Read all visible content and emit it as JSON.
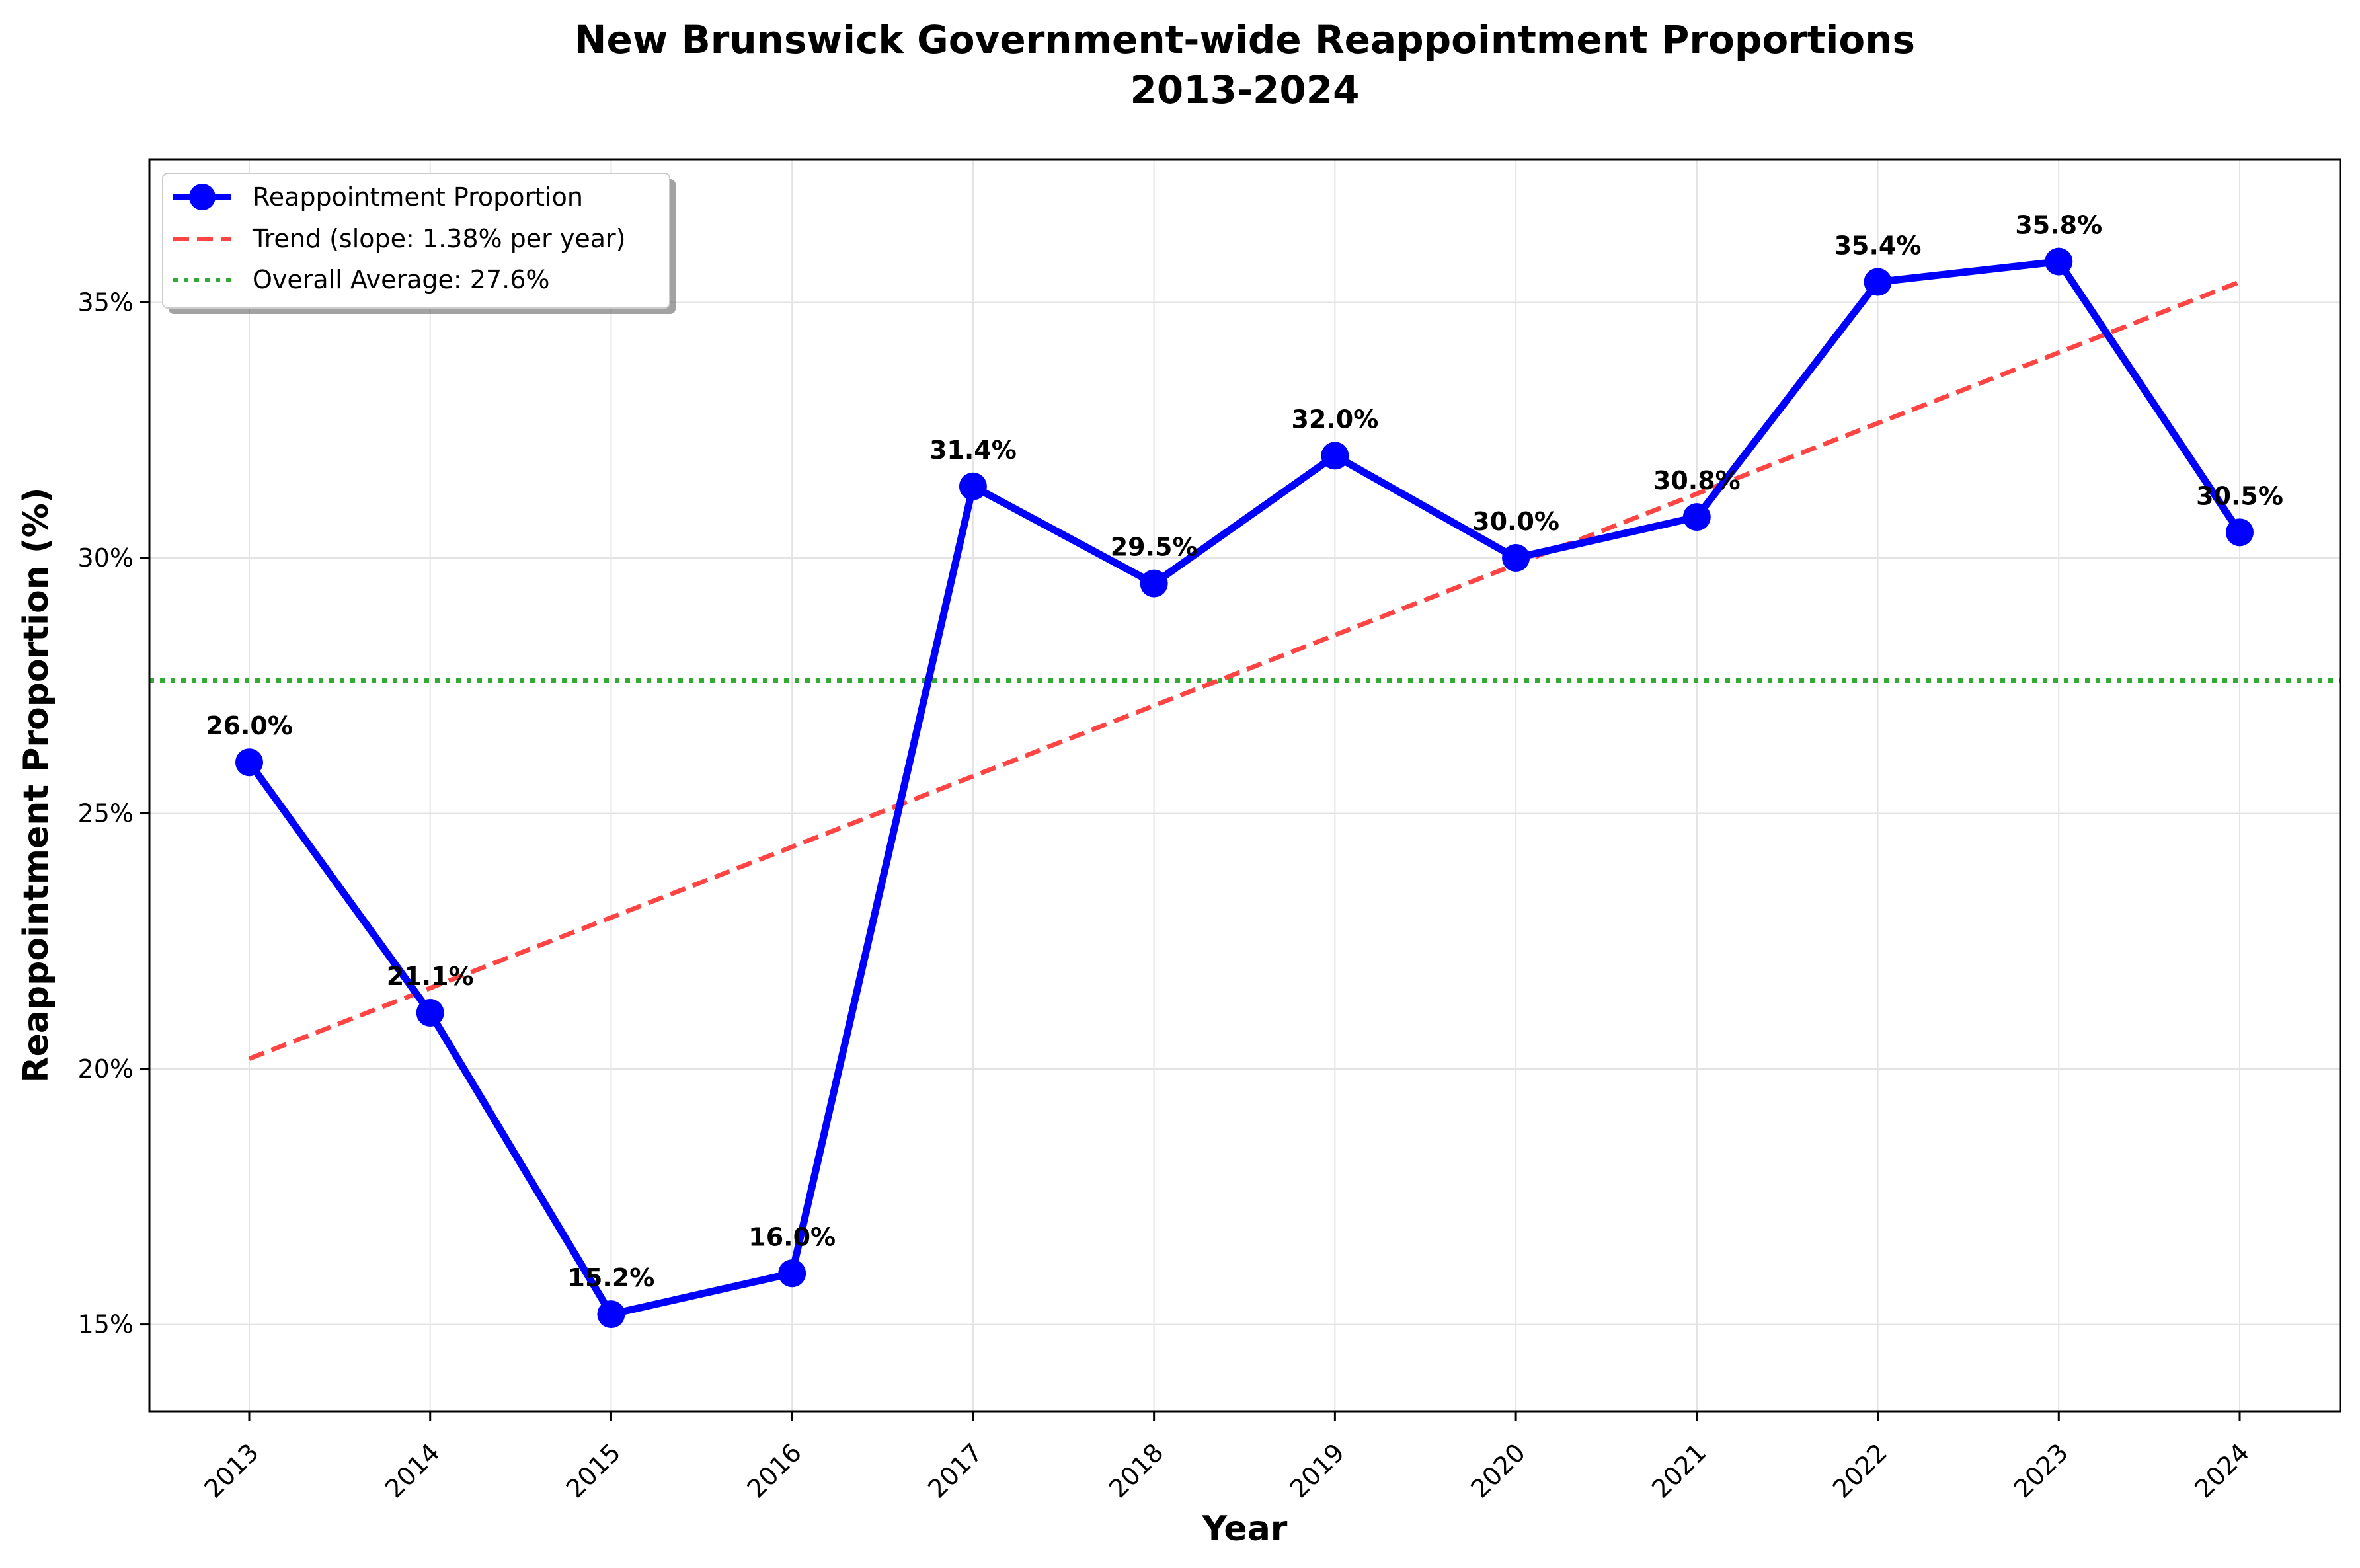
{
  "chart_data": {
    "type": "line",
    "title": "New Brunswick Government-wide Reappointment Proportions",
    "subtitle": "2013-2024",
    "xlabel": "Year",
    "ylabel": "Reappointment Proportion (%)",
    "categories": [
      "2013",
      "2014",
      "2015",
      "2016",
      "2017",
      "2018",
      "2019",
      "2020",
      "2021",
      "2022",
      "2023",
      "2024"
    ],
    "series": [
      {
        "name": "Reappointment Proportion",
        "values": [
          26.0,
          21.1,
          15.2,
          16.0,
          31.4,
          29.5,
          32.0,
          30.0,
          30.8,
          35.4,
          35.8,
          30.5
        ],
        "labels": [
          "26.0%",
          "21.1%",
          "15.2%",
          "16.0%",
          "31.4%",
          "29.5%",
          "32.0%",
          "30.0%",
          "30.8%",
          "35.4%",
          "35.8%",
          "30.5%"
        ],
        "color": "#0000ff"
      }
    ],
    "trend": {
      "name": "Trend (slope: 1.38% per year)",
      "start": 20.2,
      "end": 35.4,
      "color": "#ff4444"
    },
    "average": {
      "name": "Overall Average: 27.6%",
      "value": 27.6,
      "color": "#33aa33"
    },
    "yticks": [
      15,
      20,
      25,
      30,
      35
    ],
    "ytick_labels": [
      "15%",
      "20%",
      "25%",
      "30%",
      "35%"
    ],
    "ylim": [
      13.3,
      37.8
    ],
    "grid": true,
    "legend_position": "top-left"
  }
}
